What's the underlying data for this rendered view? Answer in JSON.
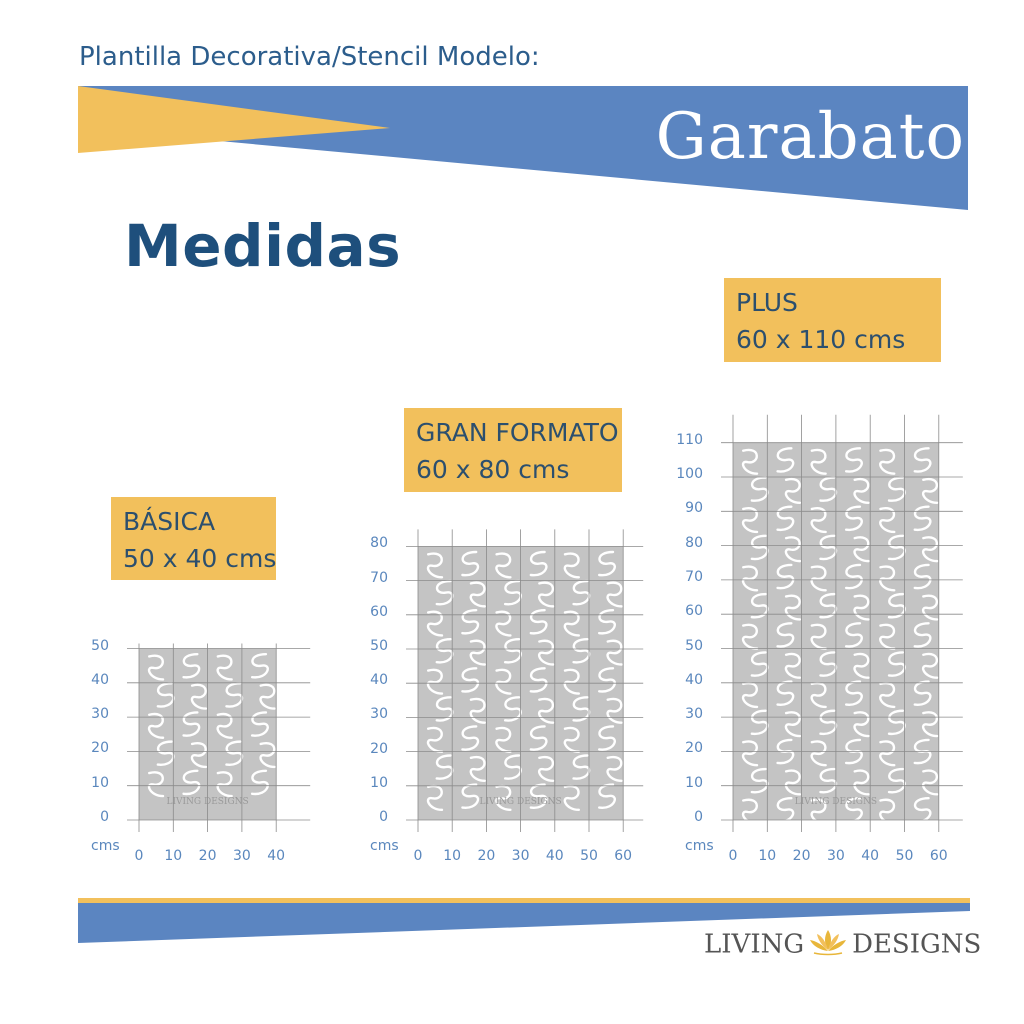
{
  "header": {
    "subtitle": "Plantilla Decorativa/Stencil Modelo:",
    "model_name": "Garabato"
  },
  "section_title": "Medidas",
  "colors": {
    "brand_blue": "#5b85c1",
    "brand_yellow": "#f2c05c",
    "title_blue": "#1e4f7c",
    "stencil_gray": "#c4c4c4"
  },
  "stencils": [
    {
      "id": "basica",
      "name": "BÁSICA",
      "size_label": "50 x 40 cms",
      "width_cm": 40,
      "height_cm": 50,
      "x_ticks": [
        "0",
        "10",
        "20",
        "30",
        "40"
      ],
      "y_ticks": [
        "0",
        "10",
        "20",
        "30",
        "40",
        "50"
      ],
      "unit": "cms",
      "watermark": "LIVING DESIGNS"
    },
    {
      "id": "gran-formato",
      "name": "GRAN FORMATO",
      "size_label": "60 x 80 cms",
      "width_cm": 60,
      "height_cm": 80,
      "x_ticks": [
        "0",
        "10",
        "20",
        "30",
        "40",
        "50",
        "60"
      ],
      "y_ticks": [
        "0",
        "10",
        "20",
        "30",
        "40",
        "50",
        "60",
        "70",
        "80"
      ],
      "unit": "cms",
      "watermark": "LIVING DESIGNS"
    },
    {
      "id": "plus",
      "name": "PLUS",
      "size_label": "60 x 110 cms",
      "width_cm": 60,
      "height_cm": 110,
      "x_ticks": [
        "0",
        "10",
        "20",
        "30",
        "40",
        "50",
        "60"
      ],
      "y_ticks": [
        "0",
        "10",
        "20",
        "30",
        "40",
        "50",
        "60",
        "70",
        "80",
        "90",
        "100",
        "110"
      ],
      "unit": "cms",
      "watermark": "LIVING DESIGNS"
    }
  ],
  "footer": {
    "logo_left": "LIVING",
    "logo_right": "DESIGNS",
    "logo_icon": "lotus-icon"
  }
}
